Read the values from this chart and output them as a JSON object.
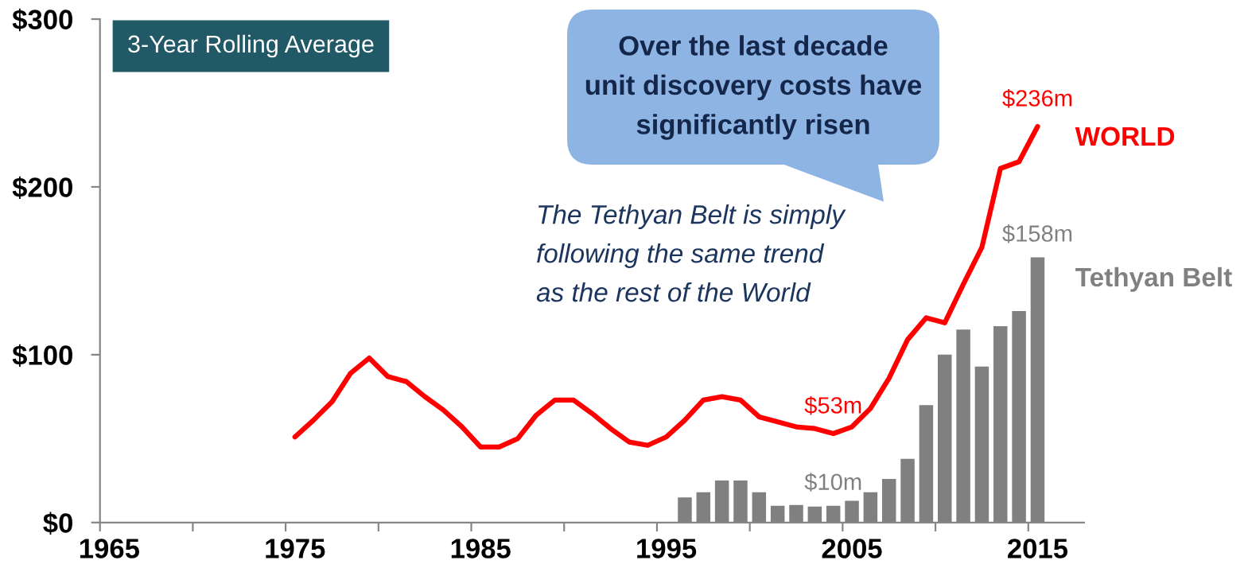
{
  "chart_data": {
    "type": "line",
    "annotations": [
      "3-Year Rolling Average",
      "Over the last decade\nunit discovery costs have\nsignificantly risen",
      "The Tethyan Belt is simply\nfollowing the same trend\nas the rest of the World"
    ],
    "categories": [
      "1965",
      null,
      null,
      null,
      null,
      null,
      null,
      null,
      null,
      null,
      "1975",
      null,
      null,
      null,
      null,
      null,
      null,
      null,
      null,
      null,
      "1985",
      null,
      null,
      null,
      null,
      null,
      null,
      null,
      null,
      null,
      "1995",
      null,
      null,
      null,
      null,
      null,
      null,
      null,
      null,
      null,
      "2005",
      null,
      null,
      null,
      null,
      null,
      null,
      null,
      null,
      null,
      "2015",
      null,
      null
    ],
    "ylim": [
      0,
      300
    ],
    "yticks": [
      {
        "value": 0,
        "label": "$0"
      },
      {
        "value": 100,
        "label": "$100"
      },
      {
        "value": 200,
        "label": "$200"
      },
      {
        "value": 300,
        "label": "$300"
      }
    ],
    "series": [
      {
        "name": "Tethyan Belt",
        "type": "bar",
        "color": "#808080",
        "values": [
          null,
          null,
          null,
          null,
          null,
          null,
          null,
          null,
          null,
          null,
          null,
          null,
          null,
          null,
          null,
          null,
          null,
          null,
          null,
          null,
          null,
          null,
          null,
          null,
          null,
          null,
          null,
          null,
          null,
          null,
          null,
          15,
          18,
          25,
          25,
          18,
          10,
          10.5,
          9.5,
          10,
          13,
          18,
          26,
          38,
          70,
          100,
          115,
          93,
          117,
          126,
          158,
          null,
          null
        ],
        "value_labels": [
          null,
          null,
          null,
          null,
          null,
          null,
          null,
          null,
          null,
          null,
          null,
          null,
          null,
          null,
          null,
          null,
          null,
          null,
          null,
          null,
          null,
          null,
          null,
          null,
          null,
          null,
          null,
          null,
          null,
          null,
          null,
          null,
          null,
          null,
          null,
          null,
          null,
          null,
          null,
          "$10m",
          null,
          null,
          null,
          null,
          null,
          null,
          null,
          null,
          null,
          null,
          "$158m",
          null,
          null
        ]
      },
      {
        "name": "WORLD",
        "color": "#ff0000",
        "values": [
          null,
          null,
          null,
          null,
          null,
          null,
          null,
          null,
          null,
          null,
          51,
          61,
          72,
          89,
          98,
          87,
          84,
          75,
          67,
          57,
          45,
          45,
          50,
          64,
          73,
          73,
          65,
          56,
          48,
          46,
          51,
          61,
          73,
          75,
          73,
          63,
          60,
          57,
          56,
          53,
          57,
          68,
          86,
          109,
          122,
          119,
          142,
          164,
          211,
          215,
          236,
          null,
          null
        ],
        "value_labels": [
          null,
          null,
          null,
          null,
          null,
          null,
          null,
          null,
          null,
          null,
          null,
          null,
          null,
          null,
          null,
          null,
          null,
          null,
          null,
          null,
          null,
          null,
          null,
          null,
          null,
          null,
          null,
          null,
          null,
          null,
          null,
          null,
          null,
          null,
          null,
          null,
          null,
          null,
          null,
          "$53m",
          null,
          null,
          null,
          null,
          null,
          null,
          null,
          null,
          null,
          null,
          "$236m",
          null,
          null
        ]
      }
    ]
  }
}
